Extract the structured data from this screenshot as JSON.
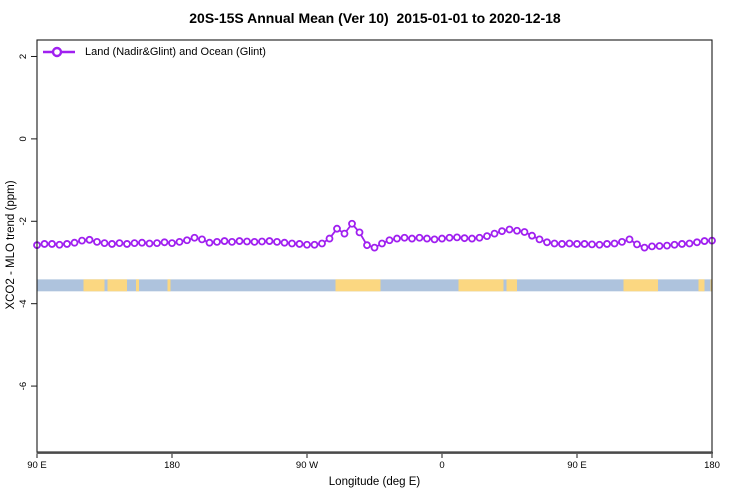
{
  "title": "20S-15S Annual Mean (Ver 10)  2015-01-01 to 2020-12-18",
  "chart_data": {
    "type": "line",
    "title": "20S-15S Annual Mean (Ver 10)  2015-01-01 to 2020-12-18",
    "xlabel": "Longitude (deg E)",
    "ylabel": "XCO2 - MLO trend (ppm)",
    "xlim": [
      90,
      540
    ],
    "ylim": [
      -7.6,
      2.4
    ],
    "grid": false,
    "legend_position": "top-left",
    "legend_frame": false,
    "x_ticks": [
      {
        "value": 90,
        "label": "90 E"
      },
      {
        "value": 180,
        "label": "180"
      },
      {
        "value": 270,
        "label": "90 W"
      },
      {
        "value": 360,
        "label": "0"
      },
      {
        "value": 450,
        "label": "90 E"
      },
      {
        "value": 540,
        "label": "180"
      }
    ],
    "y_ticks": [
      {
        "value": 2,
        "label": "2"
      },
      {
        "value": 0,
        "label": "0"
      },
      {
        "value": -2,
        "label": "-2"
      },
      {
        "value": -4,
        "label": "-4"
      },
      {
        "value": -6,
        "label": "-6"
      }
    ],
    "series": [
      {
        "name": "Land (Nadir&Glint) and Ocean (Glint)",
        "color": "#A020F0",
        "marker": "open-circle",
        "x": [
          90,
          95,
          100,
          105,
          110,
          115,
          120,
          125,
          130,
          135,
          140,
          145,
          150,
          155,
          160,
          165,
          170,
          175,
          180,
          185,
          190,
          195,
          200,
          205,
          210,
          215,
          220,
          225,
          230,
          235,
          240,
          245,
          250,
          255,
          260,
          265,
          270,
          275,
          280,
          285,
          290,
          295,
          300,
          305,
          310,
          315,
          320,
          325,
          330,
          335,
          340,
          345,
          350,
          355,
          360,
          365,
          370,
          375,
          380,
          385,
          390,
          395,
          400,
          405,
          410,
          415,
          420,
          425,
          430,
          435,
          440,
          445,
          450,
          455,
          460,
          465,
          470,
          475,
          480,
          485,
          490,
          495,
          500,
          505,
          510,
          515,
          520,
          525,
          530,
          535,
          540
        ],
        "y": [
          -2.58,
          -2.55,
          -2.55,
          -2.57,
          -2.55,
          -2.52,
          -2.47,
          -2.45,
          -2.5,
          -2.53,
          -2.55,
          -2.53,
          -2.55,
          -2.53,
          -2.52,
          -2.54,
          -2.53,
          -2.51,
          -2.53,
          -2.5,
          -2.46,
          -2.4,
          -2.44,
          -2.52,
          -2.5,
          -2.48,
          -2.5,
          -2.48,
          -2.49,
          -2.5,
          -2.49,
          -2.48,
          -2.5,
          -2.52,
          -2.54,
          -2.55,
          -2.57,
          -2.57,
          -2.54,
          -2.42,
          -2.18,
          -2.3,
          -2.06,
          -2.27,
          -2.58,
          -2.64,
          -2.54,
          -2.46,
          -2.42,
          -2.4,
          -2.42,
          -2.4,
          -2.42,
          -2.44,
          -2.42,
          -2.4,
          -2.39,
          -2.41,
          -2.42,
          -2.4,
          -2.36,
          -2.3,
          -2.24,
          -2.2,
          -2.23,
          -2.26,
          -2.35,
          -2.44,
          -2.51,
          -2.54,
          -2.55,
          -2.54,
          -2.55,
          -2.55,
          -2.56,
          -2.57,
          -2.55,
          -2.54,
          -2.5,
          -2.44,
          -2.56,
          -2.64,
          -2.61,
          -2.6,
          -2.59,
          -2.57,
          -2.55,
          -2.54,
          -2.51,
          -2.48,
          -2.47
        ]
      }
    ],
    "map_strip": {
      "description": "land/ocean band along 20S-15S latitude",
      "y_range": [
        -3.7,
        -3.41
      ],
      "ocean_color": "#AEC3DD",
      "land_color": "#FBD781",
      "ocean_range_deg_e": [
        90,
        540
      ],
      "land_segments_deg_e": [
        [
          121,
          135
        ],
        [
          137,
          150
        ],
        [
          156,
          158
        ],
        [
          177,
          179
        ],
        [
          289,
          319
        ],
        [
          371,
          401
        ],
        [
          403,
          410
        ],
        [
          481,
          504
        ],
        [
          531,
          535
        ],
        [
          539,
          540
        ]
      ]
    }
  }
}
